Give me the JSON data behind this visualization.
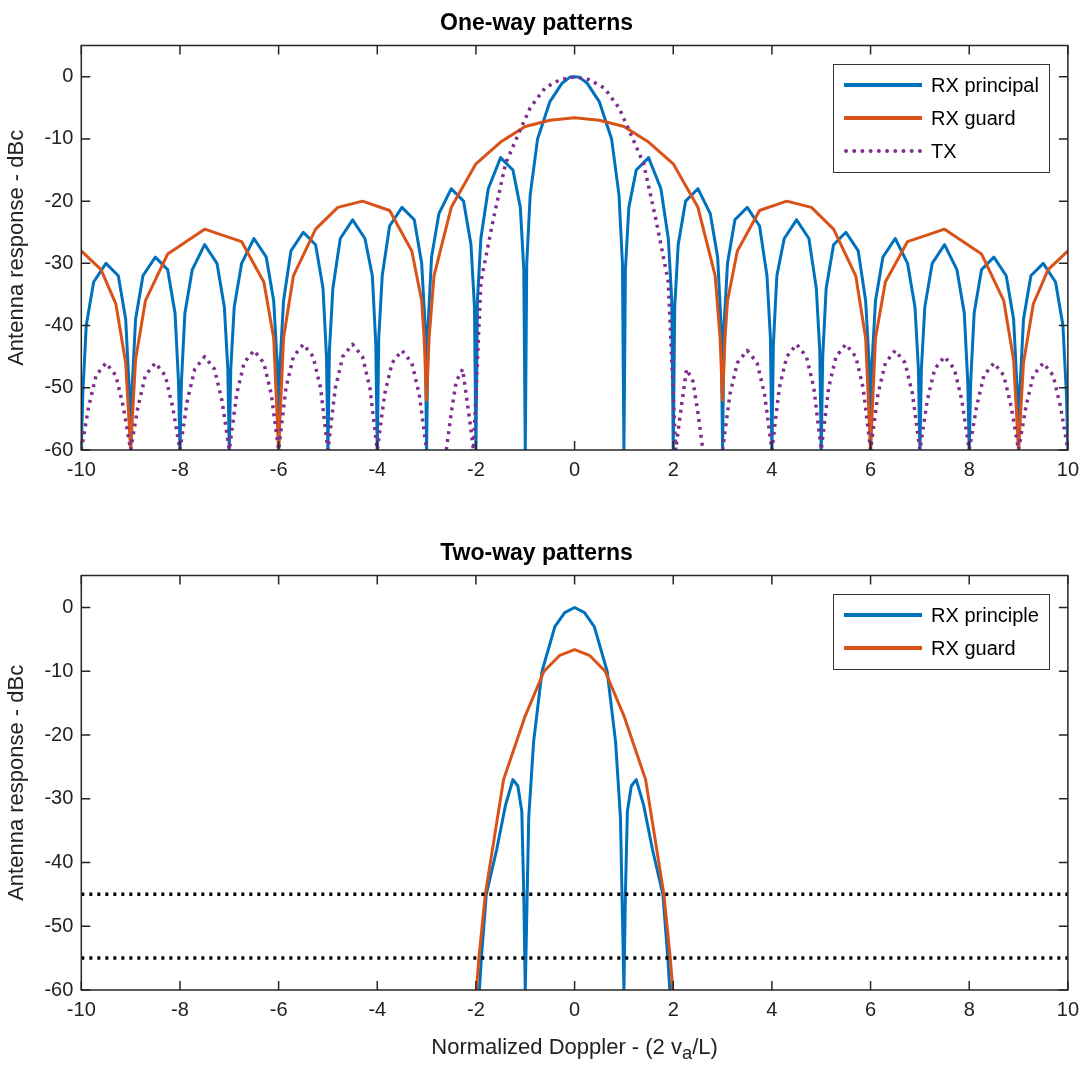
{
  "chart_data": [
    {
      "type": "line",
      "title": "One-way patterns",
      "ylabel": "Antenna response - dBc",
      "xlim": [
        -10,
        10
      ],
      "ylim": [
        -60,
        5
      ],
      "xticks": [
        -10,
        -8,
        -6,
        -4,
        -2,
        0,
        2,
        4,
        6,
        8,
        10
      ],
      "yticks": [
        -60,
        -50,
        -40,
        -30,
        -20,
        -10,
        0
      ],
      "grid": false,
      "legend": "top right",
      "marker": "none",
      "series": [
        {
          "name": "RX principal",
          "color": "#0072bd",
          "line_style": "solid",
          "x": [
            -10,
            -9.97,
            -9.9,
            -9.75,
            -9.5,
            -9.25,
            -9.1,
            -9.03,
            -9,
            -8.97,
            -8.9,
            -8.75,
            -8.5,
            -8.25,
            -8.1,
            -8.03,
            -8,
            -7.97,
            -7.9,
            -7.75,
            -7.5,
            -7.25,
            -7.1,
            -7.03,
            -7,
            -6.97,
            -6.9,
            -6.75,
            -6.5,
            -6.25,
            -6.1,
            -6.03,
            -6,
            -5.97,
            -5.9,
            -5.75,
            -5.5,
            -5.25,
            -5.1,
            -5.03,
            -5,
            -4.97,
            -4.9,
            -4.75,
            -4.5,
            -4.25,
            -4.1,
            -4.03,
            -4,
            -3.97,
            -3.9,
            -3.75,
            -3.5,
            -3.25,
            -3.1,
            -3.03,
            -3,
            -2.97,
            -2.9,
            -2.75,
            -2.5,
            -2.25,
            -2.1,
            -2.03,
            -2,
            -1.97,
            -1.9,
            -1.75,
            -1.5,
            -1.25,
            -1.1,
            -1.03,
            -1,
            -0.97,
            -0.9,
            -0.75,
            -0.5,
            -0.25,
            -0.1,
            0,
            0.1,
            0.25,
            0.5,
            0.75,
            0.9,
            0.97,
            1,
            1.03,
            1.1,
            1.25,
            1.5,
            1.75,
            1.9,
            1.97,
            2,
            2.03,
            2.1,
            2.25,
            2.5,
            2.75,
            2.9,
            2.97,
            3,
            3.03,
            3.1,
            3.25,
            3.5,
            3.75,
            3.9,
            3.97,
            4,
            4.03,
            4.1,
            4.25,
            4.5,
            4.75,
            4.9,
            4.97,
            5,
            5.03,
            5.1,
            5.25,
            5.5,
            5.75,
            5.9,
            5.97,
            6,
            6.03,
            6.1,
            6.25,
            6.5,
            6.75,
            6.9,
            6.97,
            7,
            7.03,
            7.1,
            7.25,
            7.5,
            7.75,
            7.9,
            7.97,
            8,
            8.03,
            8.1,
            8.25,
            8.5,
            8.75,
            8.9,
            8.97,
            9,
            9.03,
            9.1,
            9.25,
            9.5,
            9.75,
            9.9,
            9.97,
            10
          ],
          "values": [
            -60,
            -51,
            -40,
            -33,
            -30,
            -32,
            -39,
            -50,
            -60,
            -50,
            -39,
            -32,
            -29,
            -31,
            -38,
            -49,
            -60,
            -49,
            -38,
            -31,
            -27,
            -30,
            -37,
            -47,
            -60,
            -47,
            -37,
            -30,
            -26,
            -29,
            -36,
            -46,
            -60,
            -46,
            -36,
            -28,
            -25,
            -27,
            -34,
            -45,
            -60,
            -44,
            -34,
            -26,
            -23,
            -26,
            -32,
            -43,
            -60,
            -42,
            -32,
            -24,
            -21,
            -23,
            -30,
            -40,
            -60,
            -40,
            -29,
            -22,
            -18,
            -20,
            -27,
            -37,
            -60,
            -36,
            -26,
            -18,
            -13,
            -15,
            -21,
            -31,
            -60,
            -30,
            -19,
            -10,
            -4,
            -1,
            -0.1,
            0,
            -0.1,
            -1,
            -4,
            -10,
            -19,
            -30,
            -60,
            -31,
            -21,
            -15,
            -13,
            -18,
            -26,
            -36,
            -60,
            -37,
            -27,
            -20,
            -18,
            -22,
            -29,
            -40,
            -60,
            -40,
            -30,
            -23,
            -21,
            -24,
            -32,
            -42,
            -60,
            -43,
            -32,
            -26,
            -23,
            -26,
            -34,
            -44,
            -60,
            -45,
            -34,
            -27,
            -25,
            -28,
            -36,
            -46,
            -60,
            -46,
            -36,
            -29,
            -26,
            -30,
            -37,
            -47,
            -60,
            -47,
            -37,
            -30,
            -27,
            -31,
            -38,
            -49,
            -60,
            -49,
            -38,
            -31,
            -29,
            -32,
            -39,
            -50,
            -60,
            -50,
            -39,
            -32,
            -30,
            -33,
            -40,
            -51,
            -60
          ]
        },
        {
          "name": "RX guard",
          "color": "#d95319",
          "line_style": "solid",
          "x": [
            -10,
            -9.6,
            -9.3,
            -9.1,
            -9,
            -8.9,
            -8.7,
            -8.25,
            -7.5,
            -6.75,
            -6.3,
            -6.1,
            -6,
            -5.9,
            -5.7,
            -5.25,
            -4.8,
            -4.3,
            -3.75,
            -3.3,
            -3.1,
            -3.05,
            -3,
            -2.95,
            -2.85,
            -2.5,
            -2,
            -1.5,
            -1,
            -0.5,
            0,
            0.5,
            1,
            1.5,
            2,
            2.5,
            2.85,
            2.95,
            3,
            3.05,
            3.1,
            3.3,
            3.75,
            4.3,
            4.8,
            5.25,
            5.7,
            5.9,
            6,
            6.1,
            6.3,
            6.75,
            7.5,
            8.25,
            8.7,
            8.9,
            9,
            9.1,
            9.3,
            9.6,
            10
          ],
          "values": [
            -28,
            -31,
            -36.5,
            -46,
            -60,
            -45.5,
            -36,
            -28.5,
            -24.5,
            -26.5,
            -33,
            -42,
            -60,
            -42,
            -32,
            -24.5,
            -21,
            -20,
            -21.5,
            -28,
            -36,
            -42,
            -52,
            -42,
            -32,
            -21,
            -14,
            -10.5,
            -8,
            -7,
            -6.6,
            -7,
            -8,
            -10.5,
            -14,
            -21,
            -32,
            -42,
            -52,
            -42,
            -36,
            -28,
            -21.5,
            -20,
            -21,
            -24.5,
            -32,
            -42,
            -60,
            -42,
            -33,
            -26.5,
            -24.5,
            -28.5,
            -36,
            -45.5,
            -60,
            -46,
            -36.5,
            -31,
            -28
          ]
        },
        {
          "name": "TX",
          "color": "#7e2f8e",
          "line_style": "dotted",
          "x": [
            -10,
            -9.85,
            -9.7,
            -9.5,
            -9.3,
            -9.15,
            -9,
            -8.85,
            -8.7,
            -8.5,
            -8.3,
            -8.15,
            -8,
            -7.85,
            -7.7,
            -7.5,
            -7.3,
            -7.15,
            -7,
            -6.85,
            -6.7,
            -6.5,
            -6.3,
            -6.15,
            -6,
            -5.85,
            -5.7,
            -5.5,
            -5.3,
            -5.15,
            -5,
            -4.85,
            -4.7,
            -4.5,
            -4.3,
            -4.15,
            -4,
            -3.85,
            -3.7,
            -3.5,
            -3.3,
            -3.15,
            -3,
            -2.8,
            -2.6,
            -2.5,
            -2.4,
            -2.27,
            -2.13,
            -2.05,
            -1.9,
            -1.65,
            -1.4,
            -1.1,
            -0.9,
            -0.6,
            -0.3,
            0,
            0.3,
            0.6,
            0.9,
            1.1,
            1.4,
            1.65,
            1.9,
            2.05,
            2.13,
            2.27,
            2.4,
            2.5,
            2.6,
            2.8,
            3,
            3.15,
            3.3,
            3.5,
            3.7,
            3.85,
            4,
            4.15,
            4.3,
            4.5,
            4.7,
            4.85,
            5,
            5.15,
            5.3,
            5.5,
            5.7,
            5.85,
            6,
            6.15,
            6.3,
            6.5,
            6.7,
            6.85,
            7,
            7.15,
            7.3,
            7.5,
            7.7,
            7.85,
            8,
            8.15,
            8.3,
            8.5,
            8.7,
            8.85,
            9,
            9.15,
            9.3,
            9.5,
            9.7,
            9.85,
            10
          ],
          "values": [
            -60,
            -53,
            -48,
            -46,
            -48,
            -53,
            -60,
            -53,
            -48,
            -46,
            -48,
            -53,
            -60,
            -52,
            -47,
            -45,
            -47,
            -52,
            -60,
            -51,
            -46,
            -44,
            -46,
            -51,
            -60,
            -50,
            -45,
            -43,
            -45,
            -50,
            -60,
            -50,
            -45,
            -43,
            -45,
            -50,
            -60,
            -51,
            -46,
            -44,
            -46,
            -51,
            -60,
            null,
            -60,
            -54,
            -49,
            -47,
            -55,
            -60,
            -33,
            -23,
            -14,
            -8.5,
            -5,
            -1.8,
            -0.5,
            0,
            -0.5,
            -1.8,
            -5,
            -8.5,
            -14,
            -23,
            -33,
            -60,
            -55,
            -47,
            -49,
            -54,
            -60,
            null,
            -60,
            -51,
            -46,
            -44,
            -46,
            -51,
            -60,
            -50,
            -45,
            -43,
            -45,
            -50,
            -60,
            -50,
            -45,
            -43,
            -45,
            -50,
            -60,
            -51,
            -46,
            -44,
            -46,
            -51,
            -60,
            -52,
            -47,
            -45,
            -47,
            -52,
            -60,
            -53,
            -48,
            -46,
            -48,
            -53,
            -60,
            -53,
            -48,
            -46,
            -48,
            -53,
            -60
          ]
        }
      ]
    },
    {
      "type": "line",
      "title": "Two-way patterns",
      "xlabel": "Normalized Doppler - (2 v$_{a}$/L)",
      "ylabel": "Antenna response - dBc",
      "xlim": [
        -10,
        10
      ],
      "ylim": [
        -60,
        5
      ],
      "xticks": [
        -10,
        -8,
        -6,
        -4,
        -2,
        0,
        2,
        4,
        6,
        8,
        10
      ],
      "yticks": [
        -60,
        -50,
        -40,
        -30,
        -20,
        -10,
        0
      ],
      "grid": false,
      "legend": "top right",
      "marker": "none",
      "ref_lines": [
        {
          "axis": "y",
          "value": -45,
          "color": "#000000",
          "line_style": "dotted"
        },
        {
          "axis": "y",
          "value": -55,
          "color": "#000000",
          "line_style": "dotted"
        }
      ],
      "series": [
        {
          "name": "RX principle",
          "color": "#0072bd",
          "line_style": "solid",
          "x": [
            -1.93,
            -1.89,
            -1.79,
            -1.58,
            -1.4,
            -1.25,
            -1.15,
            -1.07,
            -1.03,
            -1,
            -0.93,
            -0.83,
            -0.66,
            -0.4,
            -0.2,
            0,
            0.2,
            0.4,
            0.66,
            0.83,
            0.93,
            1,
            1.03,
            1.07,
            1.15,
            1.25,
            1.4,
            1.58,
            1.79,
            1.89,
            1.93
          ],
          "values": [
            -60,
            -55,
            -45,
            -38,
            -31,
            -27,
            -28,
            -32,
            -45,
            -60,
            -33,
            -21,
            -10,
            -3,
            -0.8,
            0,
            -0.8,
            -3,
            -10,
            -21,
            -33,
            -60,
            -45,
            -32,
            -28,
            -27,
            -31,
            -38,
            -45,
            -55,
            -60
          ]
        },
        {
          "name": "RX guard",
          "color": "#d95319",
          "line_style": "solid",
          "x": [
            -1.99,
            -1.94,
            -1.81,
            -1.44,
            -1,
            -0.62,
            -0.3,
            0,
            0.3,
            0.62,
            1,
            1.44,
            1.81,
            1.94,
            1.99
          ],
          "values": [
            -60,
            -55,
            -45,
            -27,
            -17,
            -10,
            -7.5,
            -6.6,
            -7.5,
            -10,
            -17,
            -27,
            -45,
            -55,
            -60
          ]
        }
      ]
    }
  ]
}
